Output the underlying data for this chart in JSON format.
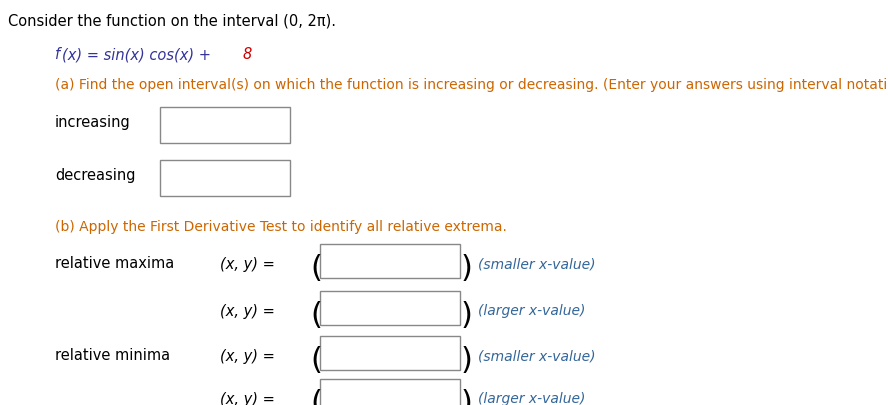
{
  "bg_color": "#ffffff",
  "title_line": "Consider the function on the interval (0, 2π).",
  "title_color": "#000000",
  "func_color_main": "#333399",
  "func_color_8": "#cc0000",
  "part_a_color": "#cc6600",
  "part_b_color": "#cc6600",
  "label_color": "#000000",
  "hint_color": "#336699",
  "box_edge_color": "#888888",
  "box_face_color": "#ffffff",
  "font_size_title": 10.5,
  "font_size_body": 10.5,
  "font_size_hint": 10.0,
  "part_a_text": "(a) Find the open interval(s) on which the function is increasing or decreasing. (Enter your answers using interval notation.)",
  "part_b_text": "(b) Apply the First Derivative Test to identify all relative extrema."
}
